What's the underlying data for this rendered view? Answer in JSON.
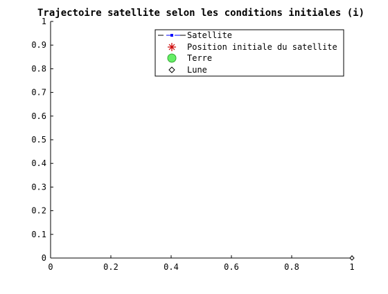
{
  "chart_data": {
    "type": "scatter",
    "title": "Trajectoire satellite selon les conditions initiales (i)",
    "xlabel": "",
    "ylabel": "",
    "xlim": [
      0,
      1
    ],
    "ylim": [
      0,
      1
    ],
    "xticks": [
      "0",
      "0.2",
      "0.4",
      "0.6",
      "0.8",
      "1"
    ],
    "yticks": [
      "0",
      "0.1",
      "0.2",
      "0.3",
      "0.4",
      "0.5",
      "0.6",
      "0.7",
      "0.8",
      "0.9",
      "1"
    ],
    "grid": false,
    "legend_position": "top-right",
    "series": [
      {
        "name": "Satellite",
        "marker": "dot",
        "line": "dashed",
        "color": "#0000ff",
        "points": []
      },
      {
        "name": "Position initiale du satellite",
        "marker": "asterisk",
        "color": "#ff0000",
        "points": []
      },
      {
        "name": "Terre",
        "marker": "circle",
        "color": "#00ff00",
        "points": []
      },
      {
        "name": "Lune",
        "marker": "diamond",
        "color": "#000000",
        "points": [
          [
            1,
            0
          ]
        ]
      }
    ]
  }
}
